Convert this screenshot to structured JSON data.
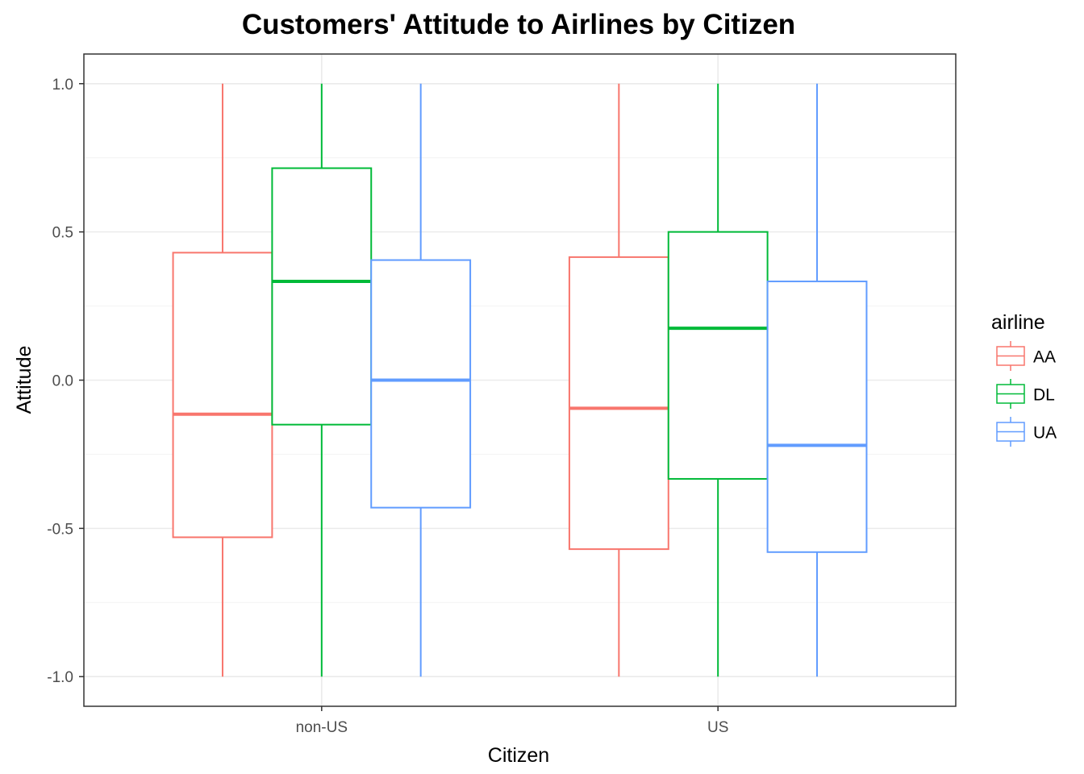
{
  "chart_data": {
    "type": "boxplot",
    "title": "Customers' Attitude to Airlines by Citizen",
    "xlabel": "Citizen",
    "ylabel": "Attitude",
    "categories": [
      "non-US",
      "US"
    ],
    "ylim": [
      -1.1,
      1.1
    ],
    "yticks": [
      1.0,
      0.5,
      0.0,
      -0.5,
      -1.0
    ],
    "ytick_labels": [
      "1.0",
      "0.5",
      "0.0",
      "-0.5",
      "-1.0"
    ],
    "grid": true,
    "legend": {
      "title": "airline",
      "placement": "right",
      "entries": [
        "AA",
        "DL",
        "UA"
      ]
    },
    "series": [
      {
        "name": "AA",
        "color": "#f8766d",
        "boxes": [
          {
            "category": "non-US",
            "min": -1.0,
            "q1": -0.53,
            "median": -0.115,
            "q3": 0.43,
            "max": 1.0
          },
          {
            "category": "US",
            "min": -1.0,
            "q1": -0.57,
            "median": -0.095,
            "q3": 0.415,
            "max": 1.0
          }
        ]
      },
      {
        "name": "DL",
        "color": "#00ba38",
        "boxes": [
          {
            "category": "non-US",
            "min": -1.0,
            "q1": -0.15,
            "median": 0.333,
            "q3": 0.715,
            "max": 1.0
          },
          {
            "category": "US",
            "min": -1.0,
            "q1": -0.333,
            "median": 0.175,
            "q3": 0.5,
            "max": 1.0
          }
        ]
      },
      {
        "name": "UA",
        "color": "#619cff",
        "boxes": [
          {
            "category": "non-US",
            "min": -1.0,
            "q1": -0.43,
            "median": 0.0,
            "q3": 0.405,
            "max": 1.0
          },
          {
            "category": "US",
            "min": -1.0,
            "q1": -0.58,
            "median": -0.22,
            "q3": 0.333,
            "max": 1.0
          }
        ]
      }
    ]
  }
}
